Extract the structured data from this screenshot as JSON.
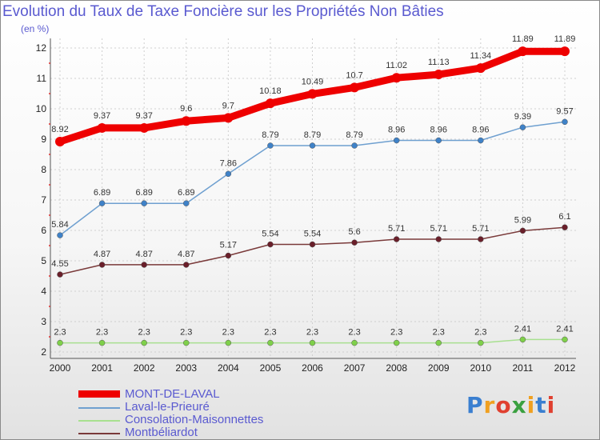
{
  "title": "Evolution du Taux de Taxe Foncière sur les Propriétés Non Bâties",
  "subtitle": "(en %)",
  "logo": {
    "letters": [
      "P",
      "r",
      "o",
      "x",
      "i",
      "t",
      "i"
    ],
    "colors": [
      "#3a7fd0",
      "#f0a020",
      "#e04030",
      "#3aa040",
      "#f0a020",
      "#3a7fd0",
      "#e04030"
    ]
  },
  "chart_data": {
    "type": "line",
    "title": "Evolution du Taux de Taxe Foncière sur les Propriétés Non Bâties",
    "ylabel": "(en %)",
    "xlabel": "",
    "ylim": [
      2,
      12
    ],
    "yticks": [
      2,
      3,
      4,
      5,
      6,
      7,
      8,
      9,
      10,
      11,
      12
    ],
    "grid": true,
    "x": [
      "2000",
      "2001",
      "2002",
      "2003",
      "2004",
      "2005",
      "2006",
      "2007",
      "2008",
      "2009",
      "2010",
      "2011",
      "2012"
    ],
    "series": [
      {
        "name": "MONT-DE-LAVAL",
        "color": "#ee0000",
        "width": 9,
        "marker": false,
        "values": [
          8.92,
          9.37,
          9.37,
          9.6,
          9.7,
          10.18,
          10.49,
          10.7,
          11.02,
          11.13,
          11.34,
          11.89,
          11.89
        ],
        "labels": [
          "8.92",
          "9.37",
          "9.37",
          "9.6",
          "9.7",
          "10.18",
          "10.49",
          "10.7",
          "11.02",
          "11.13",
          "11.34",
          "11.89",
          "11.89"
        ]
      },
      {
        "name": "Laval-le-Prieuré",
        "color": "#6fa0d0",
        "dot": "#3f82c8",
        "width": 1.5,
        "marker": true,
        "values": [
          5.84,
          6.89,
          6.89,
          6.89,
          7.86,
          8.79,
          8.79,
          8.79,
          8.96,
          8.96,
          8.96,
          9.39,
          9.57
        ],
        "labels": [
          "5.84",
          "6.89",
          "6.89",
          "6.89",
          "7.86",
          "8.79",
          "8.79",
          "8.79",
          "8.96",
          "8.96",
          "8.96",
          "9.39",
          "9.57"
        ]
      },
      {
        "name": "Consolation-Maisonnettes",
        "color": "#a8e090",
        "dot": "#7fd04a",
        "width": 1.5,
        "marker": true,
        "values": [
          2.3,
          2.3,
          2.3,
          2.3,
          2.3,
          2.3,
          2.3,
          2.3,
          2.3,
          2.3,
          2.3,
          2.41,
          2.41
        ],
        "labels": [
          "2.3",
          "2.3",
          "2.3",
          "2.3",
          "2.3",
          "2.3",
          "2.3",
          "2.3",
          "2.3",
          "2.3",
          "2.3",
          "2.41",
          "2.41"
        ]
      },
      {
        "name": "Montbéliardot",
        "color": "#7a3a3a",
        "dot": "#6a1f2a",
        "width": 1.5,
        "marker": true,
        "values": [
          4.55,
          4.87,
          4.87,
          4.87,
          5.17,
          5.54,
          5.54,
          5.6,
          5.71,
          5.71,
          5.71,
          5.99,
          6.1
        ],
        "labels": [
          "4.55",
          "4.87",
          "4.87",
          "4.87",
          "5.17",
          "5.54",
          "5.54",
          "5.6",
          "5.71",
          "5.71",
          "5.71",
          "5.99",
          "6.1"
        ]
      }
    ]
  }
}
